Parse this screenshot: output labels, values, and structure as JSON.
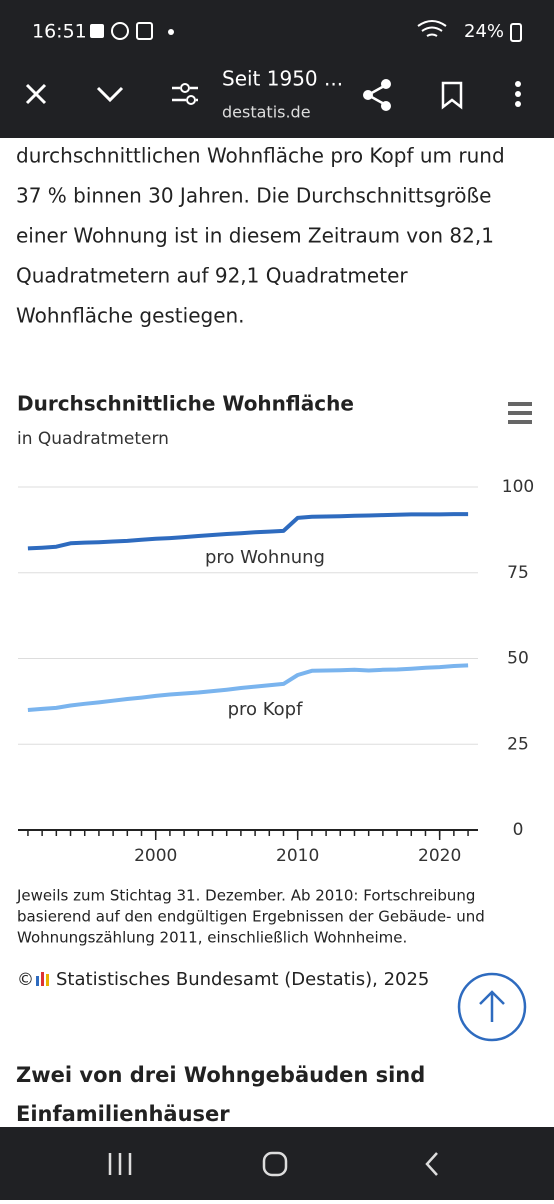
{
  "status_bar": {
    "time": "16:51",
    "battery": "24%"
  },
  "toolbar": {
    "title": "Seit 1950 ...",
    "url": "destatis.de"
  },
  "article": {
    "lines": [
      "durchschnittlichen Wohnfläche pro Kopf um rund",
      "37 % binnen 30 Jahren. Die Durchschnittsgröße",
      "einer Wohnung ist in diesem Zeitraum von 82,1",
      "Quadratmetern auf 92,1 Quadratmeter",
      "Wohnfläche gestiegen."
    ],
    "next_heading": [
      "Zwei von drei Wohngebäuden sind",
      "Einfamilienhäuser"
    ]
  },
  "chart_data": {
    "type": "line",
    "title": "Durchschnittliche Wohnfläche",
    "subtitle": "in Quadratmetern",
    "x": [
      1991,
      1992,
      1993,
      1994,
      1995,
      1996,
      1997,
      1998,
      1999,
      2000,
      2001,
      2002,
      2003,
      2004,
      2005,
      2006,
      2007,
      2008,
      2009,
      2010,
      2011,
      2012,
      2013,
      2014,
      2015,
      2016,
      2017,
      2018,
      2019,
      2020,
      2021,
      2022
    ],
    "series": [
      {
        "name": "pro Wohnung",
        "color": "#2e6bbf",
        "values": [
          82.1,
          82.3,
          82.6,
          83.6,
          83.8,
          83.9,
          84.1,
          84.3,
          84.6,
          84.9,
          85.1,
          85.4,
          85.7,
          86.0,
          86.3,
          86.5,
          86.8,
          87.0,
          87.2,
          91.0,
          91.3,
          91.4,
          91.5,
          91.6,
          91.7,
          91.8,
          91.9,
          92.0,
          92.0,
          92.0,
          92.1,
          92.1
        ]
      },
      {
        "name": "pro Kopf",
        "color": "#7ab4ee",
        "values": [
          35.0,
          35.3,
          35.6,
          36.3,
          36.8,
          37.2,
          37.7,
          38.2,
          38.6,
          39.1,
          39.5,
          39.8,
          40.1,
          40.5,
          40.9,
          41.4,
          41.8,
          42.2,
          42.6,
          45.2,
          46.4,
          46.5,
          46.6,
          46.7,
          46.5,
          46.7,
          46.8,
          47.0,
          47.3,
          47.5,
          47.8,
          48.0
        ]
      }
    ],
    "xlim": [
      1990.3,
      2022.7
    ],
    "xticks": [
      2000,
      2010,
      2020
    ],
    "xminorticks": [
      1991,
      1992,
      1993,
      1994,
      1995,
      1996,
      1997,
      1998,
      1999,
      2000,
      2001,
      2002,
      2003,
      2004,
      2005,
      2006,
      2007,
      2008,
      2009,
      2010,
      2011,
      2012,
      2013,
      2014,
      2015,
      2016,
      2017,
      2018,
      2019,
      2020,
      2021,
      2022
    ],
    "ylim": [
      0,
      100
    ],
    "yticks": [
      0,
      25,
      50,
      75,
      100
    ],
    "grid": true,
    "notes": [
      "Jeweils zum Stichtag 31. Dezember. Ab 2010: Fortschreibung",
      "basierend auf den endgültigen Ergebnissen der Gebäude- und",
      "Wohnungszählung 2011, einschließlich Wohnheime."
    ],
    "copyright": "©",
    "source": "Statistisches Bundesamt (Destatis), 2025"
  }
}
